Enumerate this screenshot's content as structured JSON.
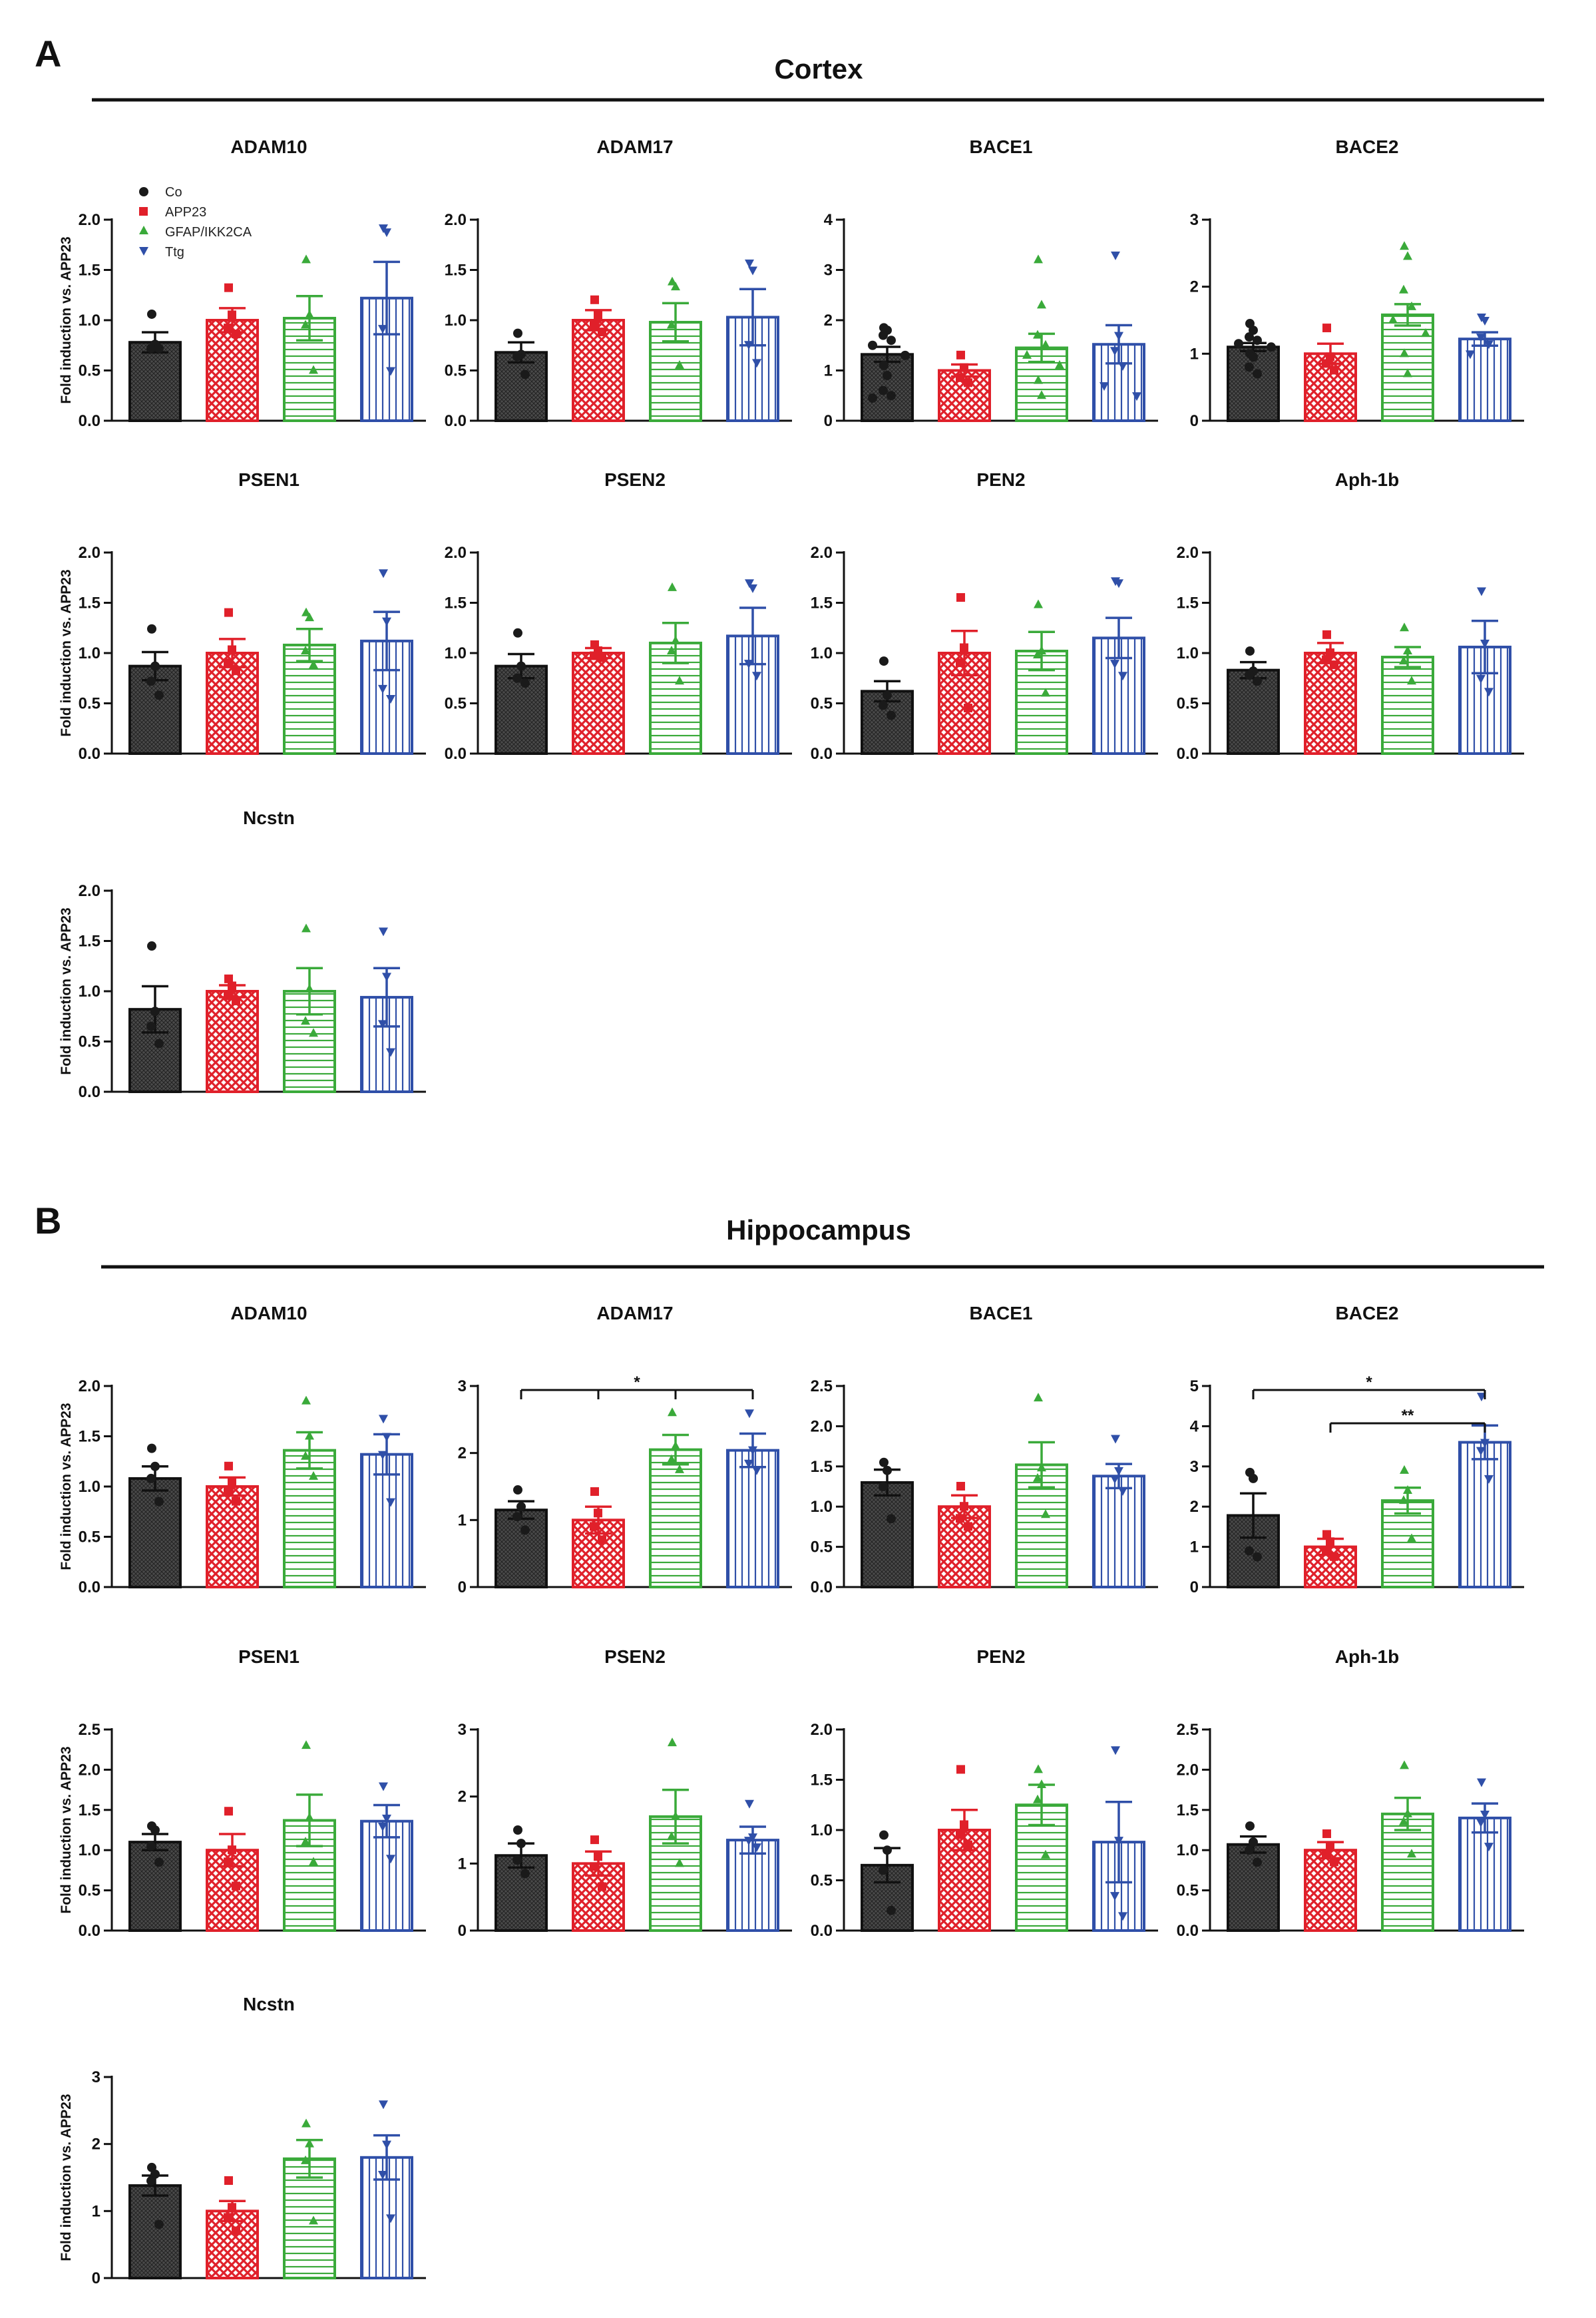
{
  "figure": {
    "sections": [
      {
        "letter": "A",
        "title": "Cortex"
      },
      {
        "letter": "B",
        "title": "Hippocampus"
      }
    ],
    "legend": {
      "items": [
        {
          "label": "Co",
          "marker": "circle"
        },
        {
          "label": "APP23",
          "marker": "square"
        },
        {
          "label": "GFAP/IKK2CA",
          "marker": "triangle-up"
        },
        {
          "label": "Ttg",
          "marker": "triangle-down"
        }
      ]
    },
    "colors": {
      "Co": "#1a1a1a",
      "APP23": "#e0202a",
      "GFAP/IKK2CA": "#3aaa3a",
      "Ttg": "#2f4fa8"
    }
  },
  "chart_data": [
    {
      "id": "a1",
      "section": "A",
      "type": "bar",
      "title": "ADAM10",
      "ylabel": "Fold induction vs. APP23",
      "categories": [
        "Co",
        "APP23",
        "GFAP/IKK2CA",
        "Ttg"
      ],
      "ylim": [
        0,
        2.0
      ],
      "yticks": [
        "0.0",
        "0.5",
        "1.0",
        "1.5",
        "2.0"
      ],
      "values": [
        0.78,
        1.0,
        1.02,
        1.22
      ],
      "errors": [
        0.1,
        0.12,
        0.22,
        0.36
      ],
      "points": [
        [
          1.06,
          0.76,
          0.72,
          0.72
        ],
        [
          1.32,
          1.05,
          0.92,
          0.86
        ],
        [
          1.6,
          1.05,
          0.95,
          0.5
        ],
        [
          1.92,
          1.88,
          0.92,
          0.5
        ]
      ],
      "significance": []
    },
    {
      "id": "a2",
      "section": "A",
      "type": "bar",
      "title": "ADAM17",
      "ylabel": "",
      "categories": [
        "Co",
        "APP23",
        "GFAP/IKK2CA",
        "Ttg"
      ],
      "ylim": [
        0,
        2.0
      ],
      "yticks": [
        "0.0",
        "0.5",
        "1.0",
        "1.5",
        "2.0"
      ],
      "values": [
        0.68,
        1.0,
        0.98,
        1.03
      ],
      "errors": [
        0.1,
        0.1,
        0.19,
        0.28
      ],
      "points": [
        [
          0.87,
          0.66,
          0.64,
          0.46
        ],
        [
          1.2,
          1.05,
          0.95,
          0.88
        ],
        [
          1.38,
          1.33,
          0.95,
          0.55
        ],
        [
          1.57,
          1.5,
          0.76,
          0.58
        ]
      ],
      "significance": []
    },
    {
      "id": "a3",
      "section": "A",
      "type": "bar",
      "title": "BACE1",
      "ylabel": "",
      "categories": [
        "Co",
        "APP23",
        "GFAP/IKK2CA",
        "Ttg"
      ],
      "ylim": [
        0,
        4
      ],
      "yticks": [
        "0",
        "1",
        "2",
        "3",
        "4"
      ],
      "values": [
        1.32,
        1.0,
        1.45,
        1.52
      ],
      "errors": [
        0.15,
        0.12,
        0.28,
        0.38
      ],
      "points": [
        [
          1.85,
          1.8,
          1.7,
          1.6,
          1.5,
          1.3,
          1.1,
          0.9,
          0.6,
          0.5,
          0.45
        ],
        [
          1.3,
          1.05,
          0.85,
          0.75
        ],
        [
          3.2,
          2.3,
          1.7,
          1.5,
          1.3,
          1.1,
          0.8,
          0.5
        ],
        [
          3.3,
          1.7,
          1.4,
          1.1,
          0.7,
          0.5
        ]
      ],
      "significance": []
    },
    {
      "id": "a4",
      "section": "A",
      "type": "bar",
      "title": "BACE2",
      "ylabel": "",
      "categories": [
        "Co",
        "APP23",
        "GFAP/IKK2CA",
        "Ttg"
      ],
      "ylim": [
        0,
        3
      ],
      "yticks": [
        "0",
        "1",
        "2",
        "3"
      ],
      "values": [
        1.1,
        1.0,
        1.58,
        1.22
      ],
      "errors": [
        0.06,
        0.15,
        0.16,
        0.1
      ],
      "points": [
        [
          1.45,
          1.35,
          1.25,
          1.2,
          1.15,
          1.1,
          1.0,
          0.95,
          0.8,
          0.7
        ],
        [
          1.38,
          0.95,
          0.85,
          0.75
        ],
        [
          2.6,
          2.45,
          1.95,
          1.7,
          1.5,
          1.3,
          1.0,
          0.7
        ],
        [
          1.55,
          1.5,
          1.25,
          1.15,
          1.0
        ]
      ],
      "significance": []
    },
    {
      "id": "a5",
      "section": "A",
      "type": "bar",
      "title": "PSEN1",
      "ylabel": "Fold induction vs. APP23",
      "categories": [
        "Co",
        "APP23",
        "GFAP/IKK2CA",
        "Ttg"
      ],
      "ylim": [
        0,
        2.0
      ],
      "yticks": [
        "0.0",
        "0.5",
        "1.0",
        "1.5",
        "2.0"
      ],
      "values": [
        0.87,
        1.0,
        1.08,
        1.12
      ],
      "errors": [
        0.14,
        0.14,
        0.16,
        0.29
      ],
      "points": [
        [
          1.24,
          0.87,
          0.72,
          0.58
        ],
        [
          1.4,
          1.03,
          0.9,
          0.82
        ],
        [
          1.4,
          1.35,
          1.02,
          0.88
        ],
        [
          1.8,
          1.32,
          0.65,
          0.55
        ]
      ],
      "significance": []
    },
    {
      "id": "a6",
      "section": "A",
      "type": "bar",
      "title": "PSEN2",
      "ylabel": "",
      "categories": [
        "Co",
        "APP23",
        "GFAP/IKK2CA",
        "Ttg"
      ],
      "ylim": [
        0,
        2.0
      ],
      "yticks": [
        "0.0",
        "0.5",
        "1.0",
        "1.5",
        "2.0"
      ],
      "values": [
        0.87,
        1.0,
        1.1,
        1.17
      ],
      "errors": [
        0.12,
        0.05,
        0.2,
        0.28
      ],
      "points": [
        [
          1.2,
          0.87,
          0.75,
          0.7
        ],
        [
          1.08,
          1.02,
          0.97,
          0.95
        ],
        [
          1.65,
          1.12,
          1.02,
          0.72
        ],
        [
          1.7,
          1.65,
          0.9,
          0.78
        ]
      ],
      "significance": []
    },
    {
      "id": "a7",
      "section": "A",
      "type": "bar",
      "title": "PEN2",
      "ylabel": "",
      "categories": [
        "Co",
        "APP23",
        "GFAP/IKK2CA",
        "Ttg"
      ],
      "ylim": [
        0,
        2.0
      ],
      "yticks": [
        "0.0",
        "0.5",
        "1.0",
        "1.5",
        "2.0"
      ],
      "values": [
        0.62,
        1.0,
        1.02,
        1.15
      ],
      "errors": [
        0.1,
        0.22,
        0.19,
        0.2
      ],
      "points": [
        [
          0.92,
          0.58,
          0.48,
          0.38
        ],
        [
          1.55,
          1.05,
          0.9,
          0.45
        ],
        [
          1.48,
          1.02,
          0.98,
          0.6
        ],
        [
          1.72,
          1.7,
          0.9,
          0.78
        ]
      ],
      "significance": []
    },
    {
      "id": "a8",
      "section": "A",
      "type": "bar",
      "title": "Aph-1b",
      "ylabel": "",
      "categories": [
        "Co",
        "APP23",
        "GFAP/IKK2CA",
        "Ttg"
      ],
      "ylim": [
        0,
        2.0
      ],
      "yticks": [
        "0.0",
        "0.5",
        "1.0",
        "1.5",
        "2.0"
      ],
      "values": [
        0.83,
        1.0,
        0.96,
        1.06
      ],
      "errors": [
        0.08,
        0.1,
        0.1,
        0.26
      ],
      "points": [
        [
          1.02,
          0.82,
          0.78,
          0.72
        ],
        [
          1.18,
          1.0,
          0.93,
          0.88
        ],
        [
          1.25,
          1.02,
          0.92,
          0.72
        ],
        [
          1.62,
          1.1,
          0.75,
          0.62
        ]
      ],
      "significance": []
    },
    {
      "id": "a9",
      "section": "A",
      "type": "bar",
      "title": "Ncstn",
      "ylabel": "Fold induction vs. APP23",
      "categories": [
        "Co",
        "APP23",
        "GFAP/IKK2CA",
        "Ttg"
      ],
      "ylim": [
        0,
        2.0
      ],
      "yticks": [
        "0.0",
        "0.5",
        "1.0",
        "1.5",
        "2.0"
      ],
      "values": [
        0.82,
        1.0,
        1.0,
        0.94
      ],
      "errors": [
        0.23,
        0.06,
        0.23,
        0.29
      ],
      "points": [
        [
          1.45,
          0.8,
          0.65,
          0.48
        ],
        [
          1.12,
          1.05,
          0.95,
          0.9
        ],
        [
          1.62,
          1.02,
          0.7,
          0.58
        ],
        [
          1.6,
          1.15,
          0.68,
          0.4
        ]
      ],
      "significance": []
    },
    {
      "id": "b1",
      "section": "B",
      "type": "bar",
      "title": "ADAM10",
      "ylabel": "Fold induction vs. APP23",
      "categories": [
        "Co",
        "APP23",
        "GFAP/IKK2CA",
        "Ttg"
      ],
      "ylim": [
        0,
        2.0
      ],
      "yticks": [
        "0.0",
        "0.5",
        "1.0",
        "1.5",
        "2.0"
      ],
      "values": [
        1.08,
        1.0,
        1.36,
        1.32
      ],
      "errors": [
        0.12,
        0.09,
        0.18,
        0.2
      ],
      "points": [
        [
          1.38,
          1.2,
          1.08,
          0.85
        ],
        [
          1.2,
          1.05,
          0.95,
          0.85
        ],
        [
          1.85,
          1.5,
          1.3,
          1.1
        ],
        [
          1.68,
          1.5,
          1.32,
          0.85
        ]
      ],
      "significance": []
    },
    {
      "id": "b2",
      "section": "B",
      "type": "bar",
      "title": "ADAM17",
      "ylabel": "",
      "categories": [
        "Co",
        "APP23",
        "GFAP/IKK2CA",
        "Ttg"
      ],
      "ylim": [
        0,
        3
      ],
      "yticks": [
        "0",
        "1",
        "2",
        "3"
      ],
      "values": [
        1.15,
        1.0,
        2.05,
        2.04
      ],
      "errors": [
        0.13,
        0.2,
        0.22,
        0.25
      ],
      "points": [
        [
          1.45,
          1.2,
          1.05,
          0.85
        ],
        [
          1.42,
          1.1,
          0.9,
          0.7
        ],
        [
          2.6,
          2.1,
          1.9,
          1.75
        ],
        [
          2.6,
          2.05,
          1.85,
          1.75
        ]
      ],
      "significance": [
        {
          "from": 0,
          "to": 3,
          "label": "*",
          "level": 0,
          "ticks": [
            0,
            1,
            2,
            3
          ]
        }
      ]
    },
    {
      "id": "b3",
      "section": "B",
      "type": "bar",
      "title": "BACE1",
      "ylabel": "",
      "categories": [
        "Co",
        "APP23",
        "GFAP/IKK2CA",
        "Ttg"
      ],
      "ylim": [
        0,
        2.5
      ],
      "yticks": [
        "0.0",
        "0.5",
        "1.0",
        "1.5",
        "2.0",
        "2.5"
      ],
      "values": [
        1.3,
        1.0,
        1.52,
        1.38
      ],
      "errors": [
        0.16,
        0.14,
        0.28,
        0.15
      ],
      "points": [
        [
          1.55,
          1.45,
          1.25,
          0.85
        ],
        [
          1.25,
          1.0,
          0.85,
          0.75
        ],
        [
          2.35,
          1.48,
          1.35,
          0.9
        ],
        [
          1.85,
          1.45,
          1.35,
          1.2
        ]
      ],
      "significance": []
    },
    {
      "id": "b4",
      "section": "B",
      "type": "bar",
      "title": "BACE2",
      "ylabel": "",
      "categories": [
        "Co",
        "APP23",
        "GFAP/IKK2CA",
        "Ttg"
      ],
      "ylim": [
        0,
        5
      ],
      "yticks": [
        "0",
        "1",
        "2",
        "3",
        "4",
        "5"
      ],
      "values": [
        1.78,
        1.0,
        2.15,
        3.6
      ],
      "errors": [
        0.55,
        0.2,
        0.32,
        0.42
      ],
      "points": [
        [
          2.85,
          2.7,
          0.9,
          0.75
        ],
        [
          1.3,
          1.12,
          0.9,
          0.75
        ],
        [
          2.9,
          2.4,
          2.15,
          1.2
        ],
        [
          4.75,
          3.6,
          3.4,
          2.7
        ]
      ],
      "significance": [
        {
          "from": 0,
          "to": 3,
          "label": "*",
          "level": 0,
          "ticks": [
            0,
            3
          ]
        },
        {
          "from": 1,
          "to": 3,
          "label": "**",
          "level": 1,
          "ticks": [
            1,
            3
          ]
        }
      ]
    },
    {
      "id": "b5",
      "section": "B",
      "type": "bar",
      "title": "PSEN1",
      "ylabel": "Fold induction vs. APP23",
      "categories": [
        "Co",
        "APP23",
        "GFAP/IKK2CA",
        "Ttg"
      ],
      "ylim": [
        0,
        2.5
      ],
      "yticks": [
        "0.0",
        "0.5",
        "1.0",
        "1.5",
        "2.0",
        "2.5"
      ],
      "values": [
        1.1,
        1.0,
        1.37,
        1.36
      ],
      "errors": [
        0.1,
        0.2,
        0.32,
        0.2
      ],
      "points": [
        [
          1.3,
          1.25,
          1.05,
          0.85
        ],
        [
          1.48,
          1.0,
          0.85,
          0.55
        ],
        [
          2.3,
          1.4,
          1.1,
          0.85
        ],
        [
          1.8,
          1.4,
          1.3,
          0.9
        ]
      ],
      "significance": []
    },
    {
      "id": "b6",
      "section": "B",
      "type": "bar",
      "title": "PSEN2",
      "ylabel": "",
      "categories": [
        "Co",
        "APP23",
        "GFAP/IKK2CA",
        "Ttg"
      ],
      "ylim": [
        0,
        3
      ],
      "yticks": [
        "0",
        "1",
        "2",
        "3"
      ],
      "values": [
        1.12,
        1.0,
        1.7,
        1.35
      ],
      "errors": [
        0.18,
        0.18,
        0.4,
        0.2
      ],
      "points": [
        [
          1.5,
          1.3,
          1.05,
          0.85
        ],
        [
          1.35,
          1.1,
          0.95,
          0.65
        ],
        [
          2.8,
          1.7,
          1.4,
          1.0
        ],
        [
          1.9,
          1.4,
          1.35,
          1.25
        ]
      ],
      "significance": []
    },
    {
      "id": "b7",
      "section": "B",
      "type": "bar",
      "title": "PEN2",
      "ylabel": "",
      "categories": [
        "Co",
        "APP23",
        "GFAP/IKK2CA",
        "Ttg"
      ],
      "ylim": [
        0,
        2.0
      ],
      "yticks": [
        "0.0",
        "0.5",
        "1.0",
        "1.5",
        "2.0"
      ],
      "values": [
        0.65,
        1.0,
        1.25,
        0.88
      ],
      "errors": [
        0.17,
        0.2,
        0.2,
        0.4
      ],
      "points": [
        [
          0.95,
          0.8,
          0.6,
          0.2
        ],
        [
          1.6,
          1.05,
          0.95,
          0.85
        ],
        [
          1.6,
          1.45,
          1.3,
          0.75
        ],
        [
          1.8,
          0.9,
          0.35,
          0.15
        ]
      ],
      "significance": []
    },
    {
      "id": "b8",
      "section": "B",
      "type": "bar",
      "title": "Aph-1b",
      "ylabel": "",
      "categories": [
        "Co",
        "APP23",
        "GFAP/IKK2CA",
        "Ttg"
      ],
      "ylim": [
        0,
        2.5
      ],
      "yticks": [
        "0.0",
        "0.5",
        "1.0",
        "1.5",
        "2.0",
        "2.5"
      ],
      "values": [
        1.07,
        1.0,
        1.45,
        1.4
      ],
      "errors": [
        0.1,
        0.1,
        0.2,
        0.18
      ],
      "points": [
        [
          1.3,
          1.1,
          1.0,
          0.85
        ],
        [
          1.2,
          1.05,
          0.95,
          0.85
        ],
        [
          2.05,
          1.45,
          1.35,
          0.95
        ],
        [
          1.85,
          1.45,
          1.35,
          1.05
        ]
      ],
      "significance": []
    },
    {
      "id": "b9",
      "section": "B",
      "type": "bar",
      "title": "Ncstn",
      "ylabel": "Fold induction vs. APP23",
      "categories": [
        "Co",
        "APP23",
        "GFAP/IKK2CA",
        "Ttg"
      ],
      "ylim": [
        0,
        3
      ],
      "yticks": [
        "0",
        "1",
        "2",
        "3"
      ],
      "values": [
        1.38,
        1.0,
        1.78,
        1.8
      ],
      "errors": [
        0.15,
        0.15,
        0.28,
        0.33
      ],
      "points": [
        [
          1.65,
          1.55,
          1.45,
          0.8
        ],
        [
          1.45,
          1.05,
          0.9,
          0.7
        ],
        [
          2.3,
          2.0,
          1.75,
          0.85
        ],
        [
          2.6,
          2.0,
          1.55,
          0.9
        ]
      ],
      "significance": []
    }
  ]
}
